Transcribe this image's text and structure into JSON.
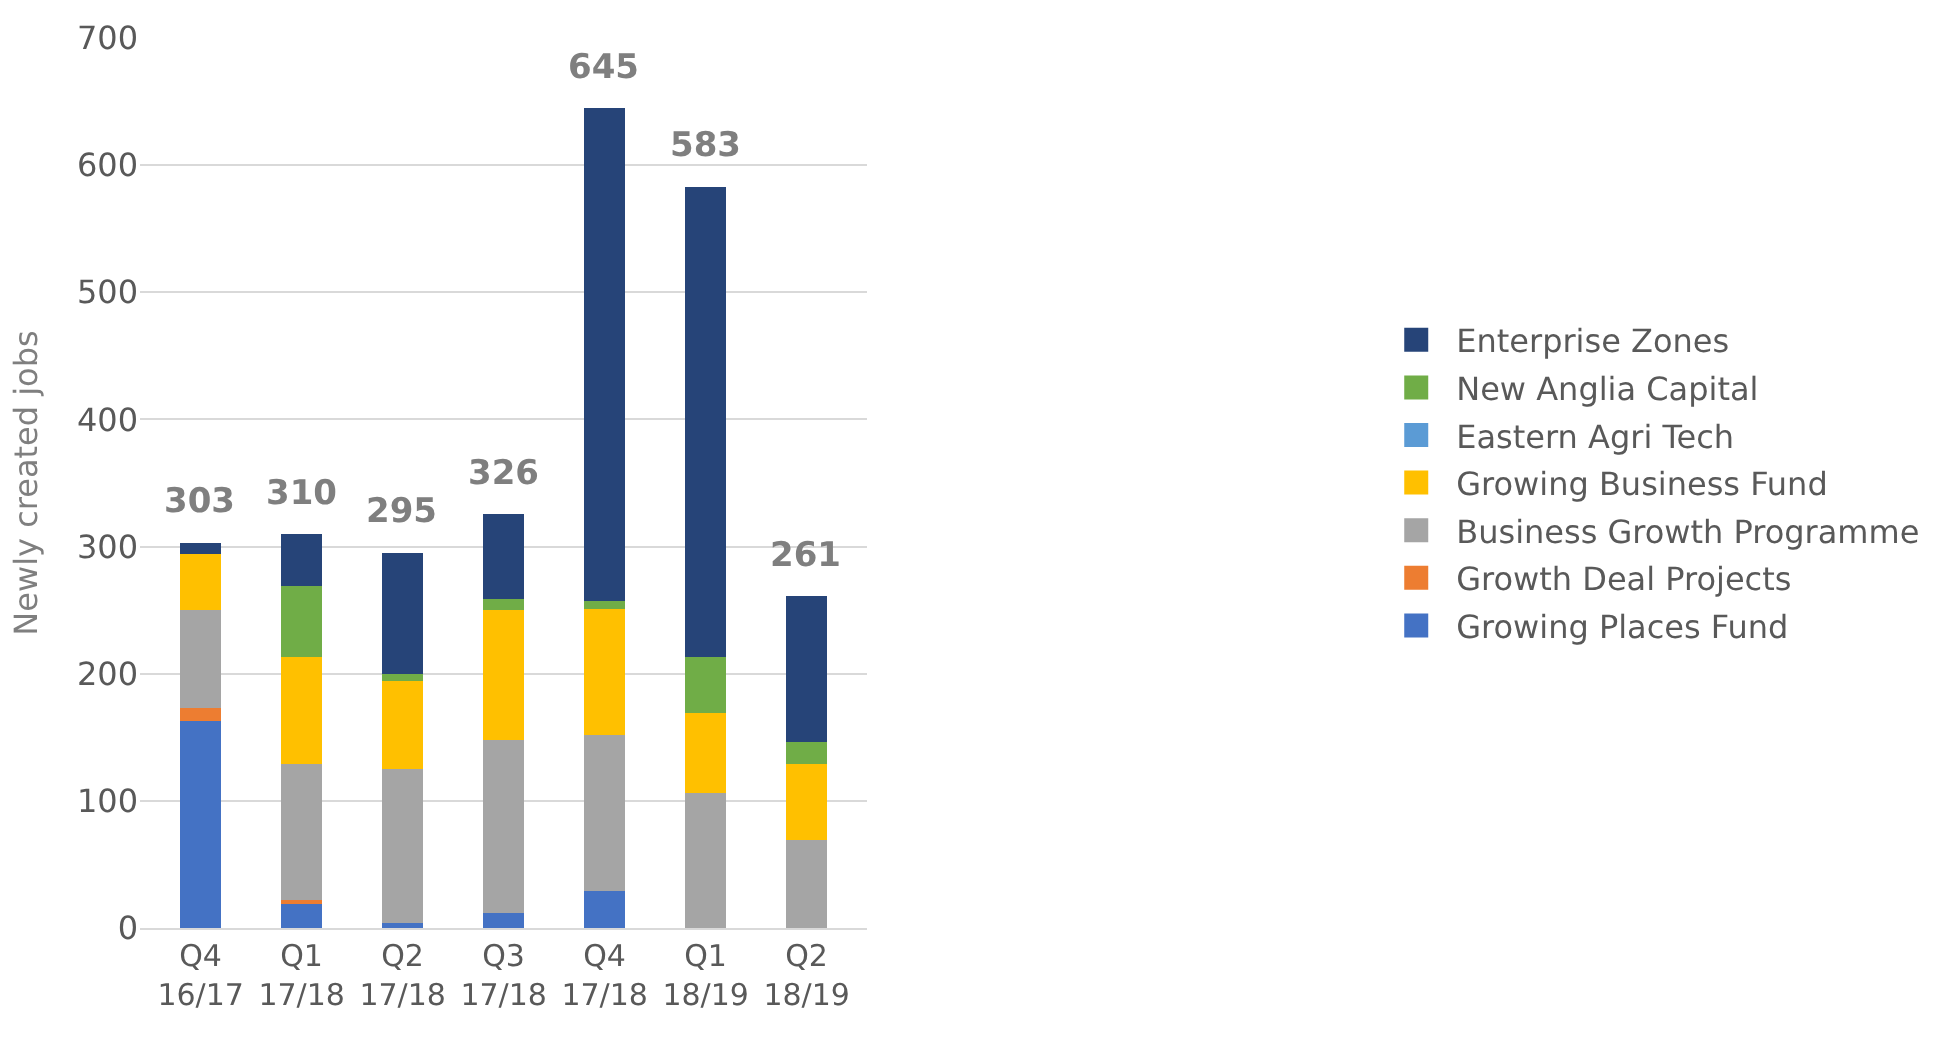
{
  "chart_data": {
    "type": "bar",
    "stacked": true,
    "ylabel": "Newly created jobs",
    "categories": [
      "Q4\n16/17",
      "Q1\n17/18",
      "Q2\n17/18",
      "Q3\n17/18",
      "Q4\n17/18",
      "Q1\n18/19",
      "Q2\n18/19"
    ],
    "series": [
      {
        "name": "Growing Places Fund",
        "color": "#4472c4",
        "values": [
          163,
          19,
          4,
          12,
          29,
          0,
          0
        ]
      },
      {
        "name": "Growth Deal Projects",
        "color": "#ed7d31",
        "values": [
          10,
          3,
          0,
          0,
          0,
          0,
          0
        ]
      },
      {
        "name": "Business Growth Programme",
        "color": "#a5a5a5",
        "values": [
          77,
          107,
          121,
          136,
          123,
          106,
          69
        ]
      },
      {
        "name": "Growing Business Fund",
        "color": "#ffc000",
        "values": [
          44,
          84,
          69,
          102,
          99,
          63,
          60
        ]
      },
      {
        "name": "Eastern Agri Tech",
        "color": "#5b9bd5",
        "values": [
          0,
          0,
          0,
          0,
          0,
          0,
          0
        ]
      },
      {
        "name": "New Anglia Capital",
        "color": "#70ad47",
        "values": [
          0,
          56,
          6,
          9,
          6,
          44,
          17
        ]
      },
      {
        "name": "Enterprise Zones",
        "color": "#264478",
        "values": [
          9,
          41,
          95,
          67,
          388,
          370,
          115
        ]
      }
    ],
    "totals": [
      "303",
      "310",
      "295",
      "326",
      "645",
      "583",
      "261"
    ],
    "ylim": [
      0,
      700
    ],
    "yticks": [
      0,
      100,
      200,
      300,
      400,
      500,
      600,
      700
    ],
    "grid": "y",
    "legend": "right"
  }
}
